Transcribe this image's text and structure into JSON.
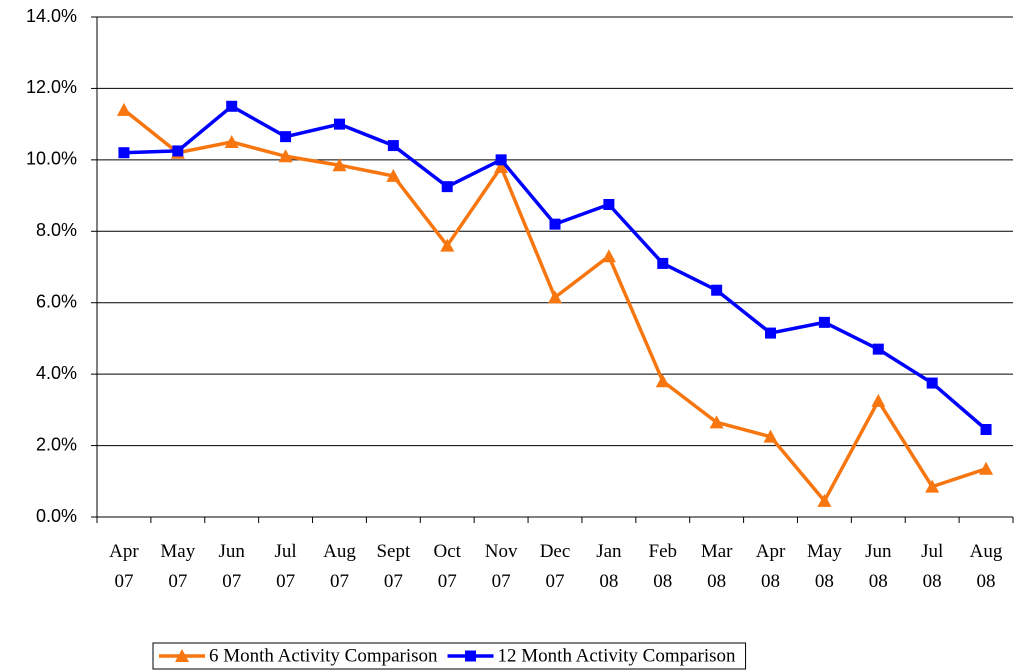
{
  "chart_data": {
    "type": "line",
    "categories": [
      "Apr 07",
      "May 07",
      "Jun 07",
      "Jul 07",
      "Aug 07",
      "Sept 07",
      "Oct 07",
      "Nov 07",
      "Dec 07",
      "Jan 08",
      "Feb 08",
      "Mar 08",
      "Apr 08",
      "May 08",
      "Jun 08",
      "Jul 08",
      "Aug 08"
    ],
    "series": [
      {
        "name": "6 Month Activity Comparison",
        "color": "#f7760f",
        "marker": "triangle",
        "values": [
          11.4,
          10.2,
          10.5,
          10.1,
          9.85,
          9.55,
          7.6,
          9.8,
          6.15,
          7.3,
          3.8,
          2.65,
          2.25,
          0.45,
          3.25,
          0.85,
          1.35
        ]
      },
      {
        "name": "12 Month Activity Comparison",
        "color": "#0000ff",
        "marker": "square",
        "values": [
          10.2,
          10.25,
          11.5,
          10.65,
          11.0,
          10.4,
          9.25,
          10.0,
          8.2,
          8.75,
          7.1,
          6.35,
          5.15,
          5.45,
          4.7,
          3.75,
          2.45
        ]
      }
    ],
    "ylim": [
      0,
      14
    ],
    "yticks": [
      {
        "value": 0,
        "label": "0.0%"
      },
      {
        "value": 2,
        "label": "2.0%"
      },
      {
        "value": 4,
        "label": "4.0%"
      },
      {
        "value": 6,
        "label": "6.0%"
      },
      {
        "value": 8,
        "label": "8.0%"
      },
      {
        "value": 10,
        "label": "10.0%"
      },
      {
        "value": 12,
        "label": "12.0%"
      },
      {
        "value": 14,
        "label": "14.0%"
      }
    ],
    "grid": true,
    "legend": "bottom"
  }
}
